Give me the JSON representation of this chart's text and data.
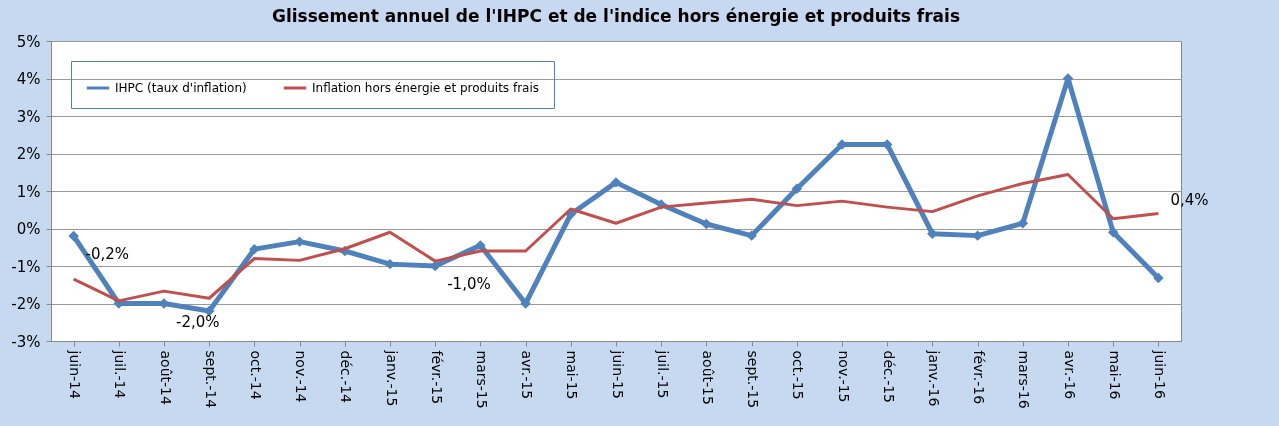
{
  "chart_data": {
    "type": "line",
    "title": "Glissement annuel de l'IHPC et de l'indice hors énergie et produits frais",
    "categories": [
      "juin-14",
      "juil.-14",
      "août-14",
      "sept.-14",
      "oct.-14",
      "nov.-14",
      "déc.-14",
      "janv.-15",
      "févr.-15",
      "mars-15",
      "avr.-15",
      "mai-15",
      "juin-15",
      "juil.-15",
      "août-15",
      "sept.-15",
      "oct.-15",
      "nov.-15",
      "déc.-15",
      "janv.-16",
      "févr.-16",
      "mars-16",
      "avr.-16",
      "mai-16",
      "juin-16"
    ],
    "series": [
      {
        "name": "IHPC (taux d'inflation)",
        "color": "#4f81bd",
        "marker": "diamond",
        "values": [
          -0.2,
          -2.0,
          -2.0,
          -2.2,
          -0.55,
          -0.35,
          -0.6,
          -0.95,
          -1.0,
          -0.45,
          -2.0,
          0.38,
          1.23,
          0.64,
          0.12,
          -0.19,
          1.06,
          2.24,
          2.24,
          -0.14,
          -0.19,
          0.14,
          4.0,
          -0.1,
          -1.32
        ],
        "value_labels": [
          "-0,2%",
          null,
          "-2,0%",
          null,
          null,
          null,
          null,
          null,
          "-1,0%",
          null,
          null,
          null,
          null,
          null,
          null,
          null,
          null,
          null,
          null,
          null,
          null,
          null,
          null,
          null,
          null
        ]
      },
      {
        "name": "Inflation hors énergie et produits frais",
        "color": "#c0504d",
        "marker": "none",
        "values": [
          -1.35,
          -1.93,
          -1.67,
          -1.86,
          -0.8,
          -0.85,
          -0.54,
          -0.1,
          -0.87,
          -0.6,
          -0.6,
          0.52,
          0.14,
          0.57,
          0.68,
          0.78,
          0.61,
          0.73,
          0.57,
          0.45,
          0.87,
          1.2,
          1.44,
          0.26,
          0.4
        ],
        "value_labels": [
          null,
          null,
          null,
          null,
          null,
          null,
          null,
          null,
          null,
          null,
          null,
          null,
          null,
          null,
          null,
          null,
          null,
          null,
          null,
          null,
          null,
          null,
          null,
          null,
          "0,4%"
        ]
      }
    ],
    "ylim": [
      -3,
      5
    ],
    "yticks": [
      {
        "value": -3,
        "label": "-3%"
      },
      {
        "value": -2,
        "label": "-2%"
      },
      {
        "value": -1,
        "label": "-1%"
      },
      {
        "value": 0,
        "label": "0%"
      },
      {
        "value": 1,
        "label": "1%"
      },
      {
        "value": 2,
        "label": "2%"
      },
      {
        "value": 3,
        "label": "3%"
      },
      {
        "value": 4,
        "label": "4%"
      },
      {
        "value": 5,
        "label": "5%"
      }
    ],
    "grid": "y",
    "legend": "top left"
  }
}
